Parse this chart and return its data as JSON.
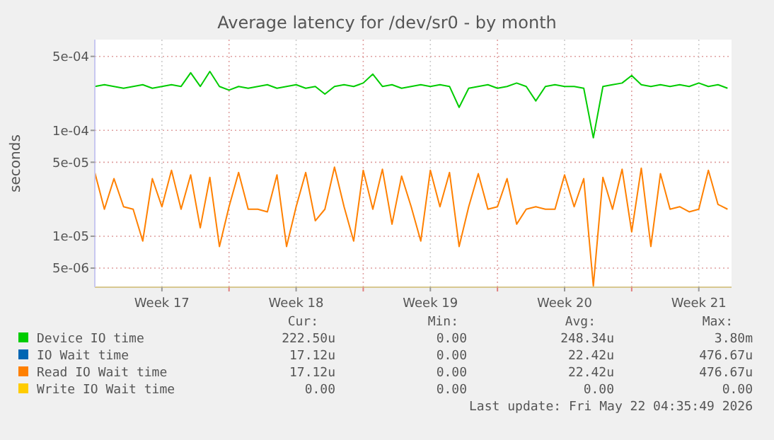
{
  "chart_data": {
    "type": "line",
    "title": "Average latency for /dev/sr0 - by month",
    "ylabel": "seconds",
    "x": [
      "2026-04-20T00:00",
      "2026-04-20T12:00",
      "2026-04-21T00:00",
      "2026-04-21T12:00",
      "2026-04-22T00:00",
      "2026-04-22T12:00",
      "2026-04-23T00:00",
      "2026-04-23T12:00",
      "2026-04-24T00:00",
      "2026-04-24T12:00",
      "2026-04-25T00:00",
      "2026-04-25T12:00",
      "2026-04-26T00:00",
      "2026-04-26T12:00",
      "2026-04-27T00:00",
      "2026-04-27T12:00",
      "2026-04-28T00:00",
      "2026-04-28T12:00",
      "2026-04-29T00:00",
      "2026-04-29T12:00",
      "2026-04-30T00:00",
      "2026-04-30T12:00",
      "2026-05-01T00:00",
      "2026-05-01T12:00",
      "2026-05-02T00:00",
      "2026-05-02T12:00",
      "2026-05-03T00:00",
      "2026-05-03T12:00",
      "2026-05-04T00:00",
      "2026-05-04T12:00",
      "2026-05-05T00:00",
      "2026-05-05T12:00",
      "2026-05-06T00:00",
      "2026-05-06T12:00",
      "2026-05-07T00:00",
      "2026-05-07T12:00",
      "2026-05-08T00:00",
      "2026-05-08T12:00",
      "2026-05-09T00:00",
      "2026-05-09T12:00",
      "2026-05-10T00:00",
      "2026-05-10T12:00",
      "2026-05-11T00:00",
      "2026-05-11T12:00",
      "2026-05-12T00:00",
      "2026-05-12T12:00",
      "2026-05-13T00:00",
      "2026-05-13T12:00",
      "2026-05-14T00:00",
      "2026-05-14T12:00",
      "2026-05-15T00:00",
      "2026-05-15T12:00",
      "2026-05-16T00:00",
      "2026-05-16T12:00",
      "2026-05-17T00:00",
      "2026-05-17T12:00",
      "2026-05-18T00:00",
      "2026-05-18T12:00",
      "2026-05-19T00:00",
      "2026-05-19T12:00",
      "2026-05-20T00:00",
      "2026-05-20T12:00",
      "2026-05-21T00:00",
      "2026-05-21T12:00",
      "2026-05-22T00:00",
      "2026-05-22T12:00",
      "2026-05-23T00:00"
    ],
    "series": [
      {
        "name": "Device IO time",
        "color": "#00cc00",
        "values": [
          0.00026,
          0.00027,
          0.00026,
          0.00025,
          0.00026,
          0.00027,
          0.00025,
          0.00026,
          0.00027,
          0.00026,
          0.00035,
          0.00026,
          0.00036,
          0.00026,
          0.00024,
          0.00026,
          0.00025,
          0.00026,
          0.00027,
          0.00025,
          0.00026,
          0.00027,
          0.00025,
          0.00026,
          0.00022,
          0.00026,
          0.00027,
          0.00026,
          0.00028,
          0.00034,
          0.00026,
          0.00027,
          0.00025,
          0.00026,
          0.00027,
          0.00026,
          0.00027,
          0.00026,
          0.000165,
          0.00025,
          0.00026,
          0.00027,
          0.00025,
          0.00026,
          0.00028,
          0.00026,
          0.00019,
          0.00026,
          0.00027,
          0.00026,
          0.00026,
          0.00025,
          8.5e-05,
          0.00026,
          0.00027,
          0.00028,
          0.00033,
          0.00027,
          0.00026,
          0.00027,
          0.00026,
          0.00027,
          0.00026,
          0.00028,
          0.00026,
          0.00027,
          0.00025
        ]
      },
      {
        "name": "IO Wait time",
        "color": "#0066b3",
        "values": [
          null,
          null,
          null,
          null,
          null,
          null,
          null,
          null,
          null,
          null,
          null,
          null,
          null,
          null,
          null,
          null,
          null,
          null,
          null,
          null,
          null,
          null,
          null,
          null,
          null,
          null,
          null,
          null,
          null,
          null,
          null,
          null,
          null,
          null,
          null,
          null,
          null,
          null,
          null,
          null,
          null,
          null,
          null,
          null,
          null,
          null,
          null,
          null,
          null,
          null,
          null,
          null,
          null,
          null,
          null,
          null,
          null,
          null,
          null,
          null,
          null,
          null,
          null,
          null,
          null,
          null,
          null
        ]
      },
      {
        "name": "Read IO Wait time",
        "color": "#ff8000",
        "values": [
          4e-05,
          1.8e-05,
          3.5e-05,
          1.9e-05,
          1.8e-05,
          9e-06,
          3.5e-05,
          1.9e-05,
          4.2e-05,
          1.8e-05,
          3.8e-05,
          1.2e-05,
          3.6e-05,
          8e-06,
          1.9e-05,
          4e-05,
          1.8e-05,
          1.8e-05,
          1.7e-05,
          3.8e-05,
          8e-06,
          1.9e-05,
          4e-05,
          1.4e-05,
          1.8e-05,
          4.5e-05,
          1.9e-05,
          9e-06,
          4.2e-05,
          1.8e-05,
          4.3e-05,
          1.3e-05,
          3.7e-05,
          1.9e-05,
          9e-06,
          4.2e-05,
          1.9e-05,
          4e-05,
          8e-06,
          1.9e-05,
          3.9e-05,
          1.8e-05,
          1.9e-05,
          3.5e-05,
          1.3e-05,
          1.8e-05,
          1.9e-05,
          1.8e-05,
          1.8e-05,
          3.8e-05,
          1.9e-05,
          3.5e-05,
          3.4e-06,
          3.6e-05,
          1.8e-05,
          4.3e-05,
          1.1e-05,
          4.4e-05,
          8e-06,
          3.9e-05,
          1.8e-05,
          1.9e-05,
          1.7e-05,
          1.8e-05,
          4.2e-05,
          2e-05,
          1.8e-05
        ]
      },
      {
        "name": "Write IO Wait time",
        "color": "#ffcc00",
        "values": [
          null,
          null,
          null,
          null,
          null,
          null,
          null,
          null,
          null,
          null,
          null,
          null,
          null,
          null,
          null,
          null,
          null,
          null,
          null,
          null,
          null,
          null,
          null,
          null,
          null,
          null,
          null,
          null,
          null,
          null,
          null,
          null,
          null,
          null,
          null,
          null,
          null,
          null,
          null,
          null,
          null,
          null,
          null,
          null,
          null,
          null,
          null,
          null,
          null,
          null,
          null,
          null,
          null,
          null,
          null,
          null,
          null,
          null,
          null,
          null,
          null,
          null,
          null,
          null,
          null,
          null,
          null
        ]
      }
    ],
    "xlim": [
      "2026-04-20T00:00",
      "2026-05-23T05:00"
    ],
    "xticks": [
      {
        "value": "2026-04-23T12:00",
        "label": "Week 17"
      },
      {
        "value": "2026-04-27T00:00",
        "label": null
      },
      {
        "value": "2026-04-30T12:00",
        "label": "Week 18"
      },
      {
        "value": "2026-05-04T00:00",
        "label": null
      },
      {
        "value": "2026-05-07T12:00",
        "label": "Week 19"
      },
      {
        "value": "2026-05-11T00:00",
        "label": null
      },
      {
        "value": "2026-05-14T12:00",
        "label": "Week 20"
      },
      {
        "value": "2026-05-18T00:00",
        "label": null
      },
      {
        "value": "2026-05-21T12:00",
        "label": "Week 21"
      }
    ],
    "ylim": [
      3.3e-06,
      0.00072
    ],
    "yticks": [
      {
        "value": 5e-06,
        "label": "5e-06"
      },
      {
        "value": 1e-05,
        "label": "1e-05"
      },
      {
        "value": 5e-05,
        "label": "5e-05"
      },
      {
        "value": 0.0001,
        "label": "1e-04"
      },
      {
        "value": 0.0005,
        "label": "5e-04"
      }
    ],
    "log": "y",
    "grid": true,
    "legend": "bottom",
    "annotations": [
      "Cur:",
      "Min:",
      "Avg:",
      "Max:",
      "222.50u",
      "0.00",
      "248.34u",
      "3.80m",
      "17.12u",
      "0.00",
      "22.42u",
      "476.67u",
      "17.12u",
      "0.00",
      "22.42u",
      "476.67u",
      "0.00",
      "0.00",
      "0.00",
      "0.00",
      "Last update: Fri May 22 04:35:49 2026"
    ]
  }
}
